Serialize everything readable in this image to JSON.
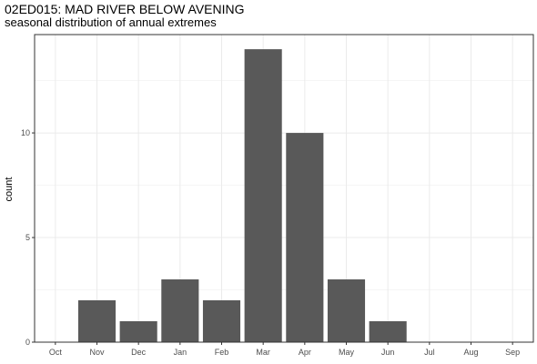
{
  "header": {
    "title": "02ED015: MAD RIVER BELOW AVENING",
    "subtitle": "seasonal distribution of annual extremes"
  },
  "chart_data": {
    "type": "bar",
    "title": "02ED015: MAD RIVER BELOW AVENING",
    "subtitle": "seasonal distribution of annual extremes",
    "xlabel": "",
    "ylabel": "count",
    "categories": [
      "Oct",
      "Nov",
      "Dec",
      "Jan",
      "Feb",
      "Mar",
      "Apr",
      "May",
      "Jun",
      "Jul",
      "Aug",
      "Sep"
    ],
    "values": [
      0,
      2,
      1,
      3,
      2,
      14,
      10,
      3,
      1,
      0,
      0,
      0
    ],
    "ylim": [
      0,
      14.7
    ],
    "yticks": [
      0,
      5,
      10
    ],
    "grid": true,
    "legend": "none",
    "bar_color": "#595959",
    "grid_color": "#ebebeb",
    "panel_border_color": "#333333"
  }
}
